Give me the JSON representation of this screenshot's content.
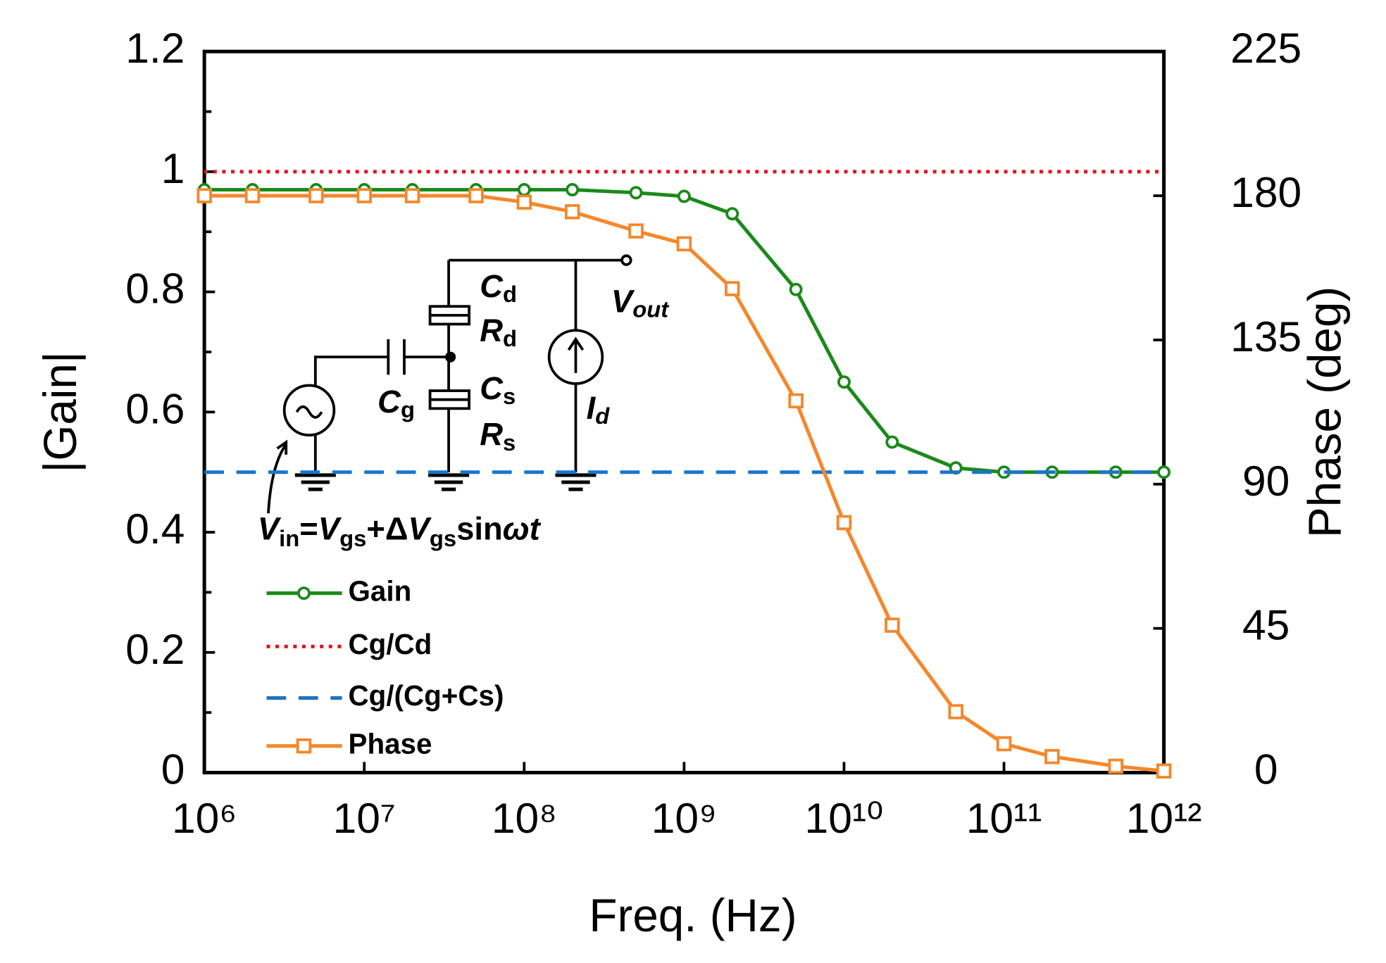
{
  "chart_data": {
    "type": "line",
    "x_label": "Freq. (Hz)",
    "y_label": "|Gain|",
    "y2_label": "Phase (deg)",
    "log_x": true,
    "xlim": [
      1000000,
      1000000000000
    ],
    "xticks": [
      {
        "value": 1000000,
        "label": "10⁶"
      },
      {
        "value": 10000000,
        "label": "10⁷"
      },
      {
        "value": 100000000,
        "label": "10⁸"
      },
      {
        "value": 1000000000,
        "label": "10⁹"
      },
      {
        "value": 10000000000,
        "label": "10¹⁰"
      },
      {
        "value": 100000000000,
        "label": "10¹¹"
      },
      {
        "value": 1000000000000,
        "label": "10¹²"
      }
    ],
    "ylim": [
      0,
      1.2
    ],
    "yticks": [
      0,
      0.2,
      0.4,
      0.6,
      0.8,
      1,
      1.2
    ],
    "yminorticks": [
      0.1,
      0.3,
      0.5,
      0.7,
      0.9,
      1.1
    ],
    "y2lim": [
      0,
      225
    ],
    "y2ticks": [
      0,
      45,
      90,
      135,
      180,
      225
    ],
    "legend": "lower left",
    "series": [
      {
        "name": "Gain",
        "color": "#1a8a1a",
        "style": "solid",
        "marker": "circle",
        "x": [
          1000000,
          2000000,
          5000000,
          10000000,
          20000000,
          50000000,
          100000000,
          200000000,
          500000000,
          1000000000,
          2000000000,
          5000000000,
          10000000000,
          20000000000,
          50000000000,
          100000000000,
          200000000000,
          500000000000,
          1000000000000
        ],
        "values": [
          0.97,
          0.97,
          0.97,
          0.97,
          0.97,
          0.97,
          0.97,
          0.97,
          0.965,
          0.959,
          0.93,
          0.804,
          0.65,
          0.55,
          0.507,
          0.5,
          0.5,
          0.5,
          0.5
        ]
      },
      {
        "name": "Cg/Cd",
        "color": "#e0161b",
        "style": "dotted",
        "x": [
          1000000,
          1000000000000
        ],
        "values": [
          1,
          1
        ]
      },
      {
        "name": "Cg/(Cg+Cs)",
        "color": "#1b75c8",
        "style": "dashed",
        "x": [
          1000000,
          1000000000000
        ],
        "values": [
          0.5,
          0.5
        ]
      },
      {
        "name": "Phase",
        "color": "#f5872a",
        "style": "solid",
        "marker": "square",
        "axis": "y2",
        "x": [
          1000000,
          2000000,
          5000000,
          10000000,
          20000000,
          50000000,
          100000000,
          200000000,
          500000000,
          1000000000,
          2000000000,
          5000000000,
          10000000000,
          20000000000,
          50000000000,
          100000000000,
          200000000000,
          500000000000,
          1000000000000
        ],
        "values": [
          180,
          180,
          180,
          180,
          180,
          180,
          178,
          175,
          169,
          165,
          151,
          116,
          78,
          46,
          19,
          9,
          5,
          2,
          0.5
        ]
      }
    ],
    "circuit_labels": {
      "cd": [
        "C",
        "d"
      ],
      "rd": [
        "R",
        "d"
      ],
      "cs": [
        "C",
        "s"
      ],
      "rs": [
        "R",
        "s"
      ],
      "cg": [
        "C",
        "g"
      ],
      "vout": [
        "V",
        "out"
      ],
      "id": [
        "I",
        "d"
      ],
      "vin": [
        "V",
        "in",
        "=",
        "V",
        "gs",
        "+Δ",
        "V",
        "gs",
        "sin",
        "ωt"
      ]
    }
  }
}
